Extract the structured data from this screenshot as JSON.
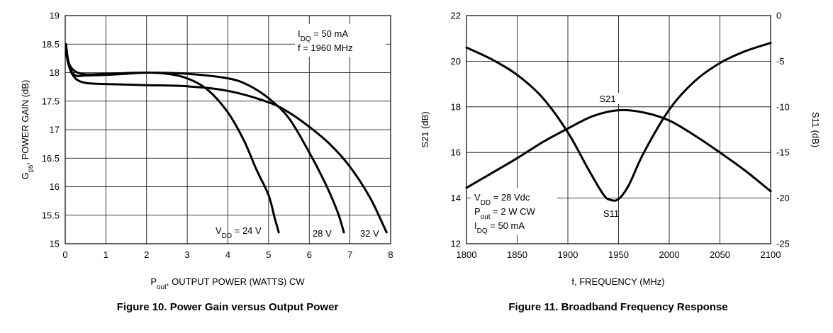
{
  "chart_data": [
    {
      "type": "line",
      "caption": "Figure 10. Power Gain versus Output Power",
      "xlabel": {
        "main": "P",
        "sub": "out",
        "rest": ", OUTPUT POWER (WATTS) CW"
      },
      "ylabel": {
        "main": "G",
        "sub": "ps",
        "rest": ", POWER GAIN (dB)"
      },
      "xlim": [
        0,
        8
      ],
      "ylim": [
        15,
        19
      ],
      "xticks": [
        "0",
        "1",
        "2",
        "3",
        "4",
        "5",
        "6",
        "7",
        "8"
      ],
      "yticks": [
        "15",
        "15.5",
        "16",
        "16.5",
        "17",
        "17.5",
        "18",
        "18.5",
        "19"
      ],
      "grid": true,
      "conditions": [
        {
          "main": "I",
          "sub": "DQ",
          "rest": " = 50 mA"
        },
        {
          "main": "f = 1960 MHz",
          "sub": "",
          "rest": ""
        }
      ],
      "series": [
        {
          "label": {
            "main": "V",
            "sub": "DD",
            "rest": " = 24 V"
          },
          "x": [
            0.02,
            0.1,
            0.25,
            0.5,
            1.0,
            1.5,
            2.0,
            2.5,
            3.0,
            3.5,
            4.0,
            4.4,
            4.7,
            5.0,
            5.15,
            5.25
          ],
          "y": [
            18.35,
            18.1,
            17.95,
            17.95,
            17.96,
            17.98,
            18.0,
            17.98,
            17.9,
            17.7,
            17.3,
            16.8,
            16.3,
            15.85,
            15.45,
            15.2
          ]
        },
        {
          "label": {
            "main": "28 V",
            "sub": "",
            "rest": ""
          },
          "x": [
            0.02,
            0.1,
            0.25,
            0.5,
            1.0,
            2.0,
            3.0,
            4.0,
            4.5,
            5.0,
            5.5,
            6.0,
            6.4,
            6.7,
            6.85
          ],
          "y": [
            18.42,
            18.15,
            18.02,
            17.97,
            17.98,
            18.0,
            17.98,
            17.9,
            17.78,
            17.55,
            17.2,
            16.6,
            16.05,
            15.55,
            15.2
          ]
        },
        {
          "label": {
            "main": "32 V",
            "sub": "",
            "rest": ""
          },
          "x": [
            0.02,
            0.1,
            0.25,
            0.5,
            1.0,
            2.0,
            3.0,
            4.0,
            5.0,
            5.5,
            6.0,
            6.5,
            7.0,
            7.5,
            7.9
          ],
          "y": [
            18.5,
            18.1,
            17.9,
            17.82,
            17.8,
            17.78,
            17.76,
            17.68,
            17.48,
            17.3,
            17.05,
            16.75,
            16.35,
            15.8,
            15.2
          ]
        }
      ]
    },
    {
      "type": "line",
      "caption": "Figure 11. Broadband Frequency Response",
      "xlabel": "f, FREQUENCY (MHz)",
      "ylabel_left": "S21 (dB)",
      "ylabel_right": "S11 (dB)",
      "xlim": [
        1800,
        2100
      ],
      "ylim_left": [
        12,
        22
      ],
      "ylim_right": [
        -25,
        0
      ],
      "xticks": [
        "1800",
        "1850",
        "1900",
        "1950",
        "2000",
        "2050",
        "2100"
      ],
      "yticks_left": [
        "12",
        "14",
        "16",
        "18",
        "20",
        "22"
      ],
      "yticks_right": [
        "-25",
        "-20",
        "-15",
        "-10",
        "-5",
        "0"
      ],
      "grid": true,
      "conditions": [
        {
          "main": "V",
          "sub": "DD",
          "rest": " = 28 Vdc"
        },
        {
          "main": "P",
          "sub": "out",
          "rest": " = 2 W CW"
        },
        {
          "main": "I",
          "sub": "DQ",
          "rest": " = 50 mA"
        }
      ],
      "series": [
        {
          "name": "S21",
          "axis": "left",
          "x": [
            1800,
            1825,
            1850,
            1875,
            1900,
            1925,
            1950,
            1975,
            2000,
            2025,
            2050,
            2075,
            2100
          ],
          "y": [
            14.45,
            15.1,
            15.75,
            16.45,
            17.05,
            17.6,
            17.85,
            17.75,
            17.4,
            16.75,
            16.0,
            15.2,
            14.3
          ]
        },
        {
          "name": "S11",
          "axis": "right",
          "x": [
            1800,
            1825,
            1850,
            1875,
            1900,
            1920,
            1935,
            1942,
            1950,
            1960,
            1975,
            2000,
            2025,
            2050,
            2075,
            2100
          ],
          "y": [
            -3.5,
            -4.8,
            -6.5,
            -9.0,
            -12.8,
            -16.8,
            -19.6,
            -20.2,
            -20.1,
            -18.6,
            -15.0,
            -10.3,
            -7.2,
            -5.2,
            -3.9,
            -3.0
          ]
        }
      ]
    }
  ]
}
